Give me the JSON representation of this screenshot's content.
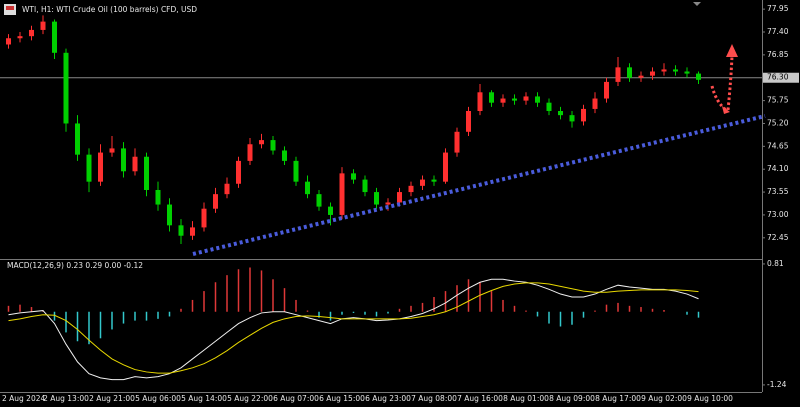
{
  "chart_data": [
    {
      "type": "candlestick",
      "title": "WTI, H1: WTI Crude Oil (100 barrels) CFD, USD",
      "categories": [
        null,
        "2 Aug 2024",
        null,
        null,
        null,
        "2 Aug 13:00",
        null,
        null,
        null,
        "2 Aug 21:00",
        null,
        null,
        null,
        "5 Aug 06:00",
        null,
        null,
        null,
        "5 Aug 14:00",
        null,
        null,
        null,
        "5 Aug 22:00",
        null,
        null,
        null,
        "6 Aug 07:00",
        null,
        null,
        null,
        "6 Aug 15:00",
        null,
        null,
        null,
        "6 Aug 23:00",
        null,
        null,
        null,
        "7 Aug 08:00",
        null,
        null,
        null,
        "7 Aug 16:00",
        null,
        null,
        null,
        "8 Aug 01:00",
        null,
        null,
        null,
        "8 Aug 09:00",
        null,
        null,
        null,
        "8 Aug 17:00",
        null,
        null,
        null,
        "9 Aug 02:00",
        null,
        null,
        null,
        "9 Aug 10:00"
      ],
      "open": [
        77.1,
        77.25,
        77.3,
        77.45,
        77.65,
        76.9,
        75.2,
        74.45,
        73.8,
        74.5,
        74.6,
        74.05,
        74.4,
        73.6,
        73.25,
        72.75,
        72.5,
        72.7,
        73.15,
        73.5,
        73.75,
        74.3,
        74.7,
        74.8,
        74.55,
        74.3,
        73.8,
        73.5,
        73.2,
        73.0,
        74.0,
        73.85,
        73.55,
        73.25,
        73.3,
        73.55,
        73.7,
        73.85,
        73.8,
        74.5,
        75.0,
        75.5,
        75.95,
        75.7,
        75.8,
        75.75,
        75.85,
        75.7,
        75.5,
        75.4,
        75.25,
        75.55,
        75.8,
        76.2,
        76.55,
        76.3,
        76.35,
        76.45,
        76.5,
        76.45,
        76.4,
        null
      ],
      "high": [
        77.35,
        77.4,
        77.55,
        77.8,
        77.7,
        77.0,
        75.4,
        74.6,
        74.7,
        74.9,
        74.75,
        74.6,
        74.5,
        73.8,
        73.4,
        72.9,
        72.85,
        73.3,
        73.65,
        73.9,
        74.4,
        74.85,
        74.95,
        74.9,
        74.65,
        74.4,
        73.95,
        73.6,
        73.3,
        74.15,
        74.1,
        73.95,
        73.65,
        73.4,
        73.65,
        73.8,
        73.95,
        73.95,
        74.6,
        75.1,
        75.6,
        76.15,
        76.0,
        75.9,
        75.9,
        75.95,
        75.95,
        75.8,
        75.6,
        75.5,
        75.65,
        75.95,
        76.3,
        76.8,
        76.65,
        76.45,
        76.55,
        76.65,
        76.6,
        76.55,
        76.45,
        null
      ],
      "low": [
        77.0,
        77.15,
        77.2,
        77.35,
        76.75,
        75.0,
        74.3,
        73.55,
        73.7,
        74.4,
        73.9,
        73.95,
        73.45,
        73.1,
        72.6,
        72.3,
        72.4,
        72.6,
        73.05,
        73.4,
        73.65,
        74.2,
        74.6,
        74.45,
        74.2,
        73.7,
        73.4,
        73.1,
        72.75,
        72.9,
        73.75,
        73.45,
        73.15,
        73.1,
        73.2,
        73.45,
        73.6,
        73.7,
        73.75,
        74.4,
        74.9,
        75.4,
        75.6,
        75.6,
        75.65,
        75.65,
        75.6,
        75.4,
        75.3,
        75.1,
        75.15,
        75.45,
        75.7,
        76.1,
        76.2,
        76.2,
        76.25,
        76.35,
        76.35,
        76.3,
        76.15,
        null
      ],
      "close": [
        77.25,
        77.3,
        77.45,
        77.65,
        76.9,
        75.2,
        74.45,
        73.8,
        74.5,
        74.6,
        74.05,
        74.4,
        73.6,
        73.25,
        72.75,
        72.5,
        72.7,
        73.15,
        73.5,
        73.75,
        74.3,
        74.7,
        74.8,
        74.55,
        74.3,
        73.8,
        73.5,
        73.2,
        73.0,
        74.0,
        73.85,
        73.55,
        73.25,
        73.3,
        73.55,
        73.7,
        73.85,
        73.8,
        74.5,
        75.0,
        75.5,
        75.95,
        75.7,
        75.8,
        75.75,
        75.85,
        75.7,
        75.5,
        75.4,
        75.25,
        75.55,
        75.8,
        76.2,
        76.55,
        76.3,
        76.35,
        76.45,
        76.5,
        76.45,
        76.4,
        76.25,
        null
      ],
      "up_color": "#ff3030",
      "down_color": "#00d000",
      "ylim": [
        71.94,
        78.17
      ],
      "yticks": [
        77.95,
        {
          "value": 77.4,
          "label": "77.40"
        },
        76.85,
        75.75,
        {
          "value": 75.2,
          "label": "75.20"
        },
        74.65,
        {
          "value": 74.1,
          "label": "74.10"
        },
        73.55,
        {
          "value": 73,
          "label": "73.00"
        },
        72.45
      ],
      "current_price": {
        "value": 76.3,
        "label": "76.30"
      }
    },
    {
      "type": "macd",
      "title": "MACD(12,26,9) 0.23 0.29 0.00 -0.12",
      "histogram": [
        0.1,
        0.12,
        0.08,
        0.02,
        -0.15,
        -0.35,
        -0.5,
        -0.55,
        -0.45,
        -0.3,
        -0.2,
        -0.15,
        -0.15,
        -0.12,
        -0.08,
        0.05,
        0.2,
        0.35,
        0.5,
        0.62,
        0.72,
        0.75,
        0.7,
        0.55,
        0.4,
        0.2,
        0.02,
        -0.1,
        -0.15,
        -0.05,
        -0.02,
        -0.05,
        -0.08,
        -0.03,
        0.05,
        0.1,
        0.15,
        0.25,
        0.35,
        0.45,
        0.55,
        0.5,
        0.35,
        0.2,
        0.1,
        0.02,
        -0.08,
        -0.2,
        -0.25,
        -0.22,
        -0.1,
        0.02,
        0.12,
        0.15,
        0.1,
        0.08,
        0.05,
        0.03,
        0.0,
        -0.05,
        -0.1,
        null
      ],
      "macd": [
        -0.05,
        -0.02,
        0.0,
        0.02,
        -0.2,
        -0.55,
        -0.85,
        -1.05,
        -1.12,
        -1.15,
        -1.15,
        -1.1,
        -1.12,
        -1.1,
        -1.05,
        -0.95,
        -0.8,
        -0.65,
        -0.5,
        -0.35,
        -0.2,
        -0.1,
        -0.02,
        0.0,
        0.0,
        -0.05,
        -0.1,
        -0.15,
        -0.2,
        -0.12,
        -0.1,
        -0.12,
        -0.15,
        -0.14,
        -0.12,
        -0.08,
        -0.03,
        0.05,
        0.15,
        0.28,
        0.4,
        0.5,
        0.55,
        0.55,
        0.52,
        0.5,
        0.45,
        0.38,
        0.3,
        0.25,
        0.25,
        0.3,
        0.38,
        0.45,
        0.42,
        0.4,
        0.38,
        0.38,
        0.35,
        0.3,
        0.22,
        null
      ],
      "signal": [
        -0.15,
        -0.12,
        -0.08,
        -0.05,
        -0.06,
        -0.15,
        -0.3,
        -0.48,
        -0.65,
        -0.8,
        -0.9,
        -0.98,
        -1.02,
        -1.04,
        -1.04,
        -1.0,
        -0.95,
        -0.88,
        -0.78,
        -0.66,
        -0.52,
        -0.4,
        -0.28,
        -0.18,
        -0.12,
        -0.08,
        -0.07,
        -0.08,
        -0.1,
        -0.12,
        -0.12,
        -0.12,
        -0.12,
        -0.12,
        -0.12,
        -0.11,
        -0.08,
        -0.05,
        0.0,
        0.08,
        0.18,
        0.28,
        0.36,
        0.43,
        0.47,
        0.49,
        0.49,
        0.47,
        0.43,
        0.39,
        0.35,
        0.33,
        0.33,
        0.35,
        0.36,
        0.37,
        0.37,
        0.37,
        0.37,
        0.36,
        0.34,
        null
      ],
      "positive_color": "#e03838",
      "negative_color": "#33c8cc",
      "macd_color": "#f0f0f0",
      "signal_color": "#e8d800",
      "ylim": [
        -1.36,
        0.86
      ],
      "yticks": [
        0.81,
        -1.24
      ]
    }
  ]
}
